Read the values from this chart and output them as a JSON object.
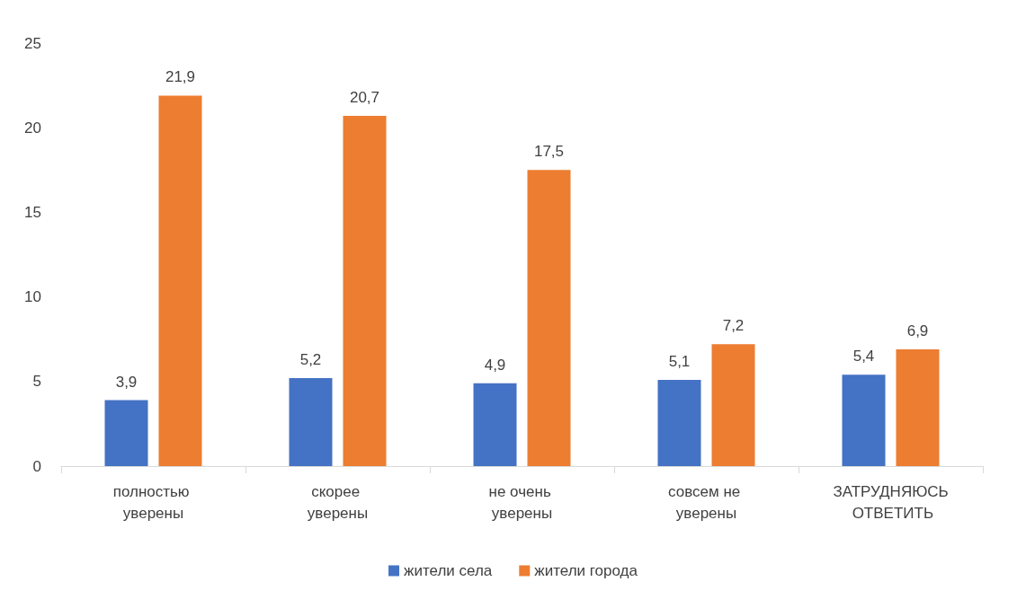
{
  "chart_data": {
    "type": "bar",
    "categories": [
      "полностью уверены",
      "скорее уверены",
      "не очень уверены",
      "совсем не уверены",
      "ЗАТРУДНЯЮСЬ ОТВЕТИТЬ"
    ],
    "series": [
      {
        "name": "жители села",
        "color": "#4472c4",
        "values": [
          3.9,
          5.2,
          4.9,
          5.1,
          5.4
        ],
        "value_labels": [
          "3,9",
          "5,2",
          "4,9",
          "5,1",
          "5,4"
        ]
      },
      {
        "name": "жители города",
        "color": "#ed7d31",
        "values": [
          21.9,
          20.7,
          17.5,
          7.2,
          6.9
        ],
        "value_labels": [
          "21,9",
          "20,7",
          "17,5",
          "7,2",
          "6,9"
        ]
      }
    ],
    "ylim": [
      0,
      25
    ],
    "yticks": [
      0,
      5,
      10,
      15,
      20,
      25
    ],
    "grid": false,
    "legend": "bottom"
  }
}
